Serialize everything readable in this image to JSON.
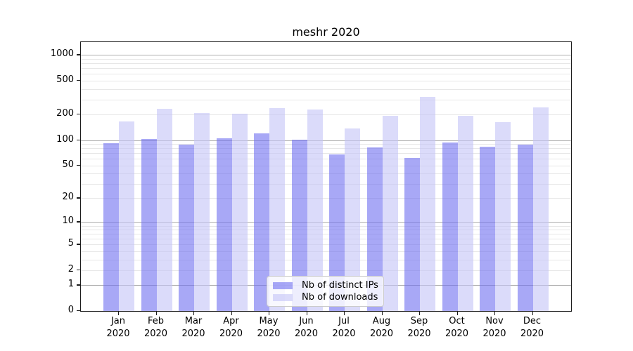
{
  "chart_data": {
    "type": "bar",
    "title": "meshr 2020",
    "categories": [
      "Jan 2020",
      "Feb 2020",
      "Mar 2020",
      "Apr 2020",
      "May 2020",
      "Jun 2020",
      "Jul 2020",
      "Aug 2020",
      "Sep 2020",
      "Oct 2020",
      "Nov 2020",
      "Dec 2020"
    ],
    "series": [
      {
        "name": "Nb of distinct IPs",
        "color": "rgba(110,110,240,0.6)",
        "apparent_color": "#aaaaf4",
        "values": [
          92,
          102,
          88,
          105,
          120,
          101,
          67,
          82,
          61,
          94,
          83,
          88
        ]
      },
      {
        "name": "Nb of downloads",
        "color": "rgba(195,195,247,0.6)",
        "apparent_color": "#dcdcf8",
        "values": [
          165,
          234,
          209,
          205,
          236,
          229,
          138,
          195,
          320,
          192,
          164,
          243
        ]
      }
    ],
    "xlabel": "",
    "ylabel": "",
    "yscale": "symlog",
    "y_ticks": [
      1000,
      500,
      200,
      100,
      50,
      20,
      10,
      5,
      2,
      1,
      0
    ],
    "ylim": [
      0,
      1420
    ],
    "grid": {
      "on": true,
      "major_decades": [
        1,
        10,
        100,
        1000
      ],
      "minor_subs": [
        2,
        3,
        4,
        5,
        6,
        7,
        8,
        9
      ],
      "major_color": "#aeaeae",
      "minor_color": "#e7e7e7"
    },
    "legend_position": "lower center",
    "spine_color": "#1c1c1c",
    "background_color": "#ffffff"
  }
}
